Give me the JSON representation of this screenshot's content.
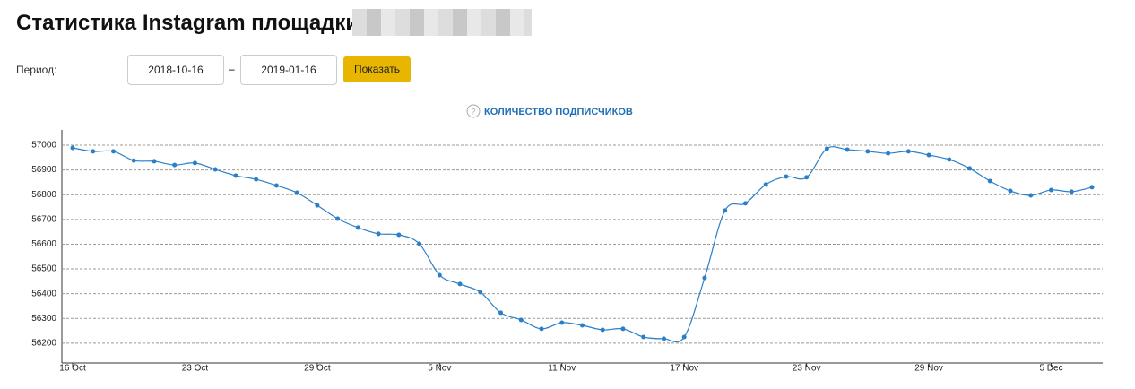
{
  "header": {
    "title": "Статистика Instagram площадки @"
  },
  "filter": {
    "label": "Период:",
    "from": "2018-10-16",
    "separator": "–",
    "to": "2019-01-16",
    "button": "Показать"
  },
  "chart_data": {
    "type": "line",
    "title": "КОЛИЧЕСТВО ПОДПИСЧИКОВ",
    "categories": [
      "16 Oct",
      null,
      null,
      null,
      null,
      null,
      "23 Oct",
      null,
      null,
      null,
      null,
      null,
      "29 Oct",
      null,
      null,
      null,
      null,
      null,
      "5 Nov",
      null,
      null,
      null,
      null,
      null,
      "11 Nov",
      null,
      null,
      null,
      null,
      null,
      "17 Nov",
      null,
      null,
      null,
      null,
      null,
      "23 Nov",
      null,
      null,
      null,
      null,
      null,
      "29 Nov",
      null,
      null,
      null,
      null,
      null,
      "5 Dec",
      null,
      null
    ],
    "values": [
      56989,
      56975,
      56975,
      56938,
      56935,
      56920,
      56928,
      56902,
      56877,
      56862,
      56837,
      56808,
      56757,
      56703,
      56667,
      56642,
      56638,
      56602,
      56475,
      56439,
      56406,
      56323,
      56294,
      56258,
      56283,
      56272,
      56254,
      56258,
      56225,
      56218,
      56225,
      56464,
      56736,
      56765,
      56841,
      56873,
      56870,
      56986,
      56982,
      56975,
      56967,
      56975,
      56960,
      56942,
      56906,
      56855,
      56815,
      56797,
      56819,
      56812,
      56830
    ],
    "color": "#2a7fc9",
    "ylim": [
      56120,
      57060
    ],
    "yticks": [
      56200,
      56300,
      56400,
      56500,
      56600,
      56700,
      56800,
      56900,
      57000
    ],
    "grid": true
  }
}
